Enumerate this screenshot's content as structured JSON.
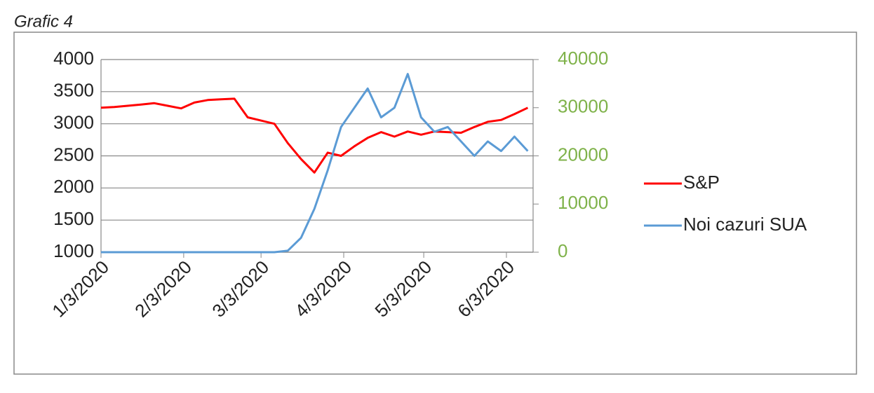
{
  "chart_data": {
    "type": "line",
    "title": "Grafic 4",
    "x": [
      "1/3/2020",
      "1/8/2020",
      "1/13/2020",
      "1/18/2020",
      "1/23/2020",
      "1/28/2020",
      "2/2/2020",
      "2/7/2020",
      "2/12/2020",
      "2/17/2020",
      "2/22/2020",
      "2/27/2020",
      "3/3/2020",
      "3/8/2020",
      "3/13/2020",
      "3/18/2020",
      "3/23/2020",
      "3/28/2020",
      "4/2/2020",
      "4/7/2020",
      "4/12/2020",
      "4/17/2020",
      "4/22/2020",
      "4/27/2020",
      "5/2/2020",
      "5/7/2020",
      "5/12/2020",
      "5/17/2020",
      "5/22/2020",
      "5/27/2020",
      "6/1/2020",
      "6/6/2020",
      "6/11/2020"
    ],
    "series": [
      {
        "name": "S&P",
        "color": "#ff0000",
        "values": [
          3250,
          3260,
          3280,
          3300,
          3320,
          3280,
          3240,
          3330,
          3370,
          3380,
          3390,
          3100,
          3050,
          3000,
          2700,
          2450,
          2240,
          2550,
          2500,
          2650,
          2780,
          2870,
          2800,
          2880,
          2830,
          2880,
          2870,
          2860,
          2950,
          3030,
          3060,
          3150,
          3250
        ]
      },
      {
        "name": "Noi cazuri SUA",
        "color": "#5b9bd5",
        "axis": "y2",
        "values": [
          0,
          0,
          0,
          0,
          0,
          0,
          0,
          0,
          0,
          0,
          0,
          0,
          0,
          0,
          300,
          3000,
          9000,
          17000,
          26000,
          30000,
          34000,
          28000,
          30000,
          37000,
          28000,
          25000,
          26000,
          23000,
          20000,
          23000,
          21000,
          24000,
          21000
        ]
      }
    ],
    "xlim": [
      "1/3/2020",
      "6/13/2020"
    ],
    "xticks": [
      "1/3/2020",
      "2/3/2020",
      "3/3/2020",
      "4/3/2020",
      "5/3/2020",
      "6/3/2020"
    ],
    "ylim": [
      1000,
      4000
    ],
    "yticks": [
      1000,
      1500,
      2000,
      2500,
      3000,
      3500,
      4000
    ],
    "y2lim": [
      0,
      40000
    ],
    "y2ticks": [
      0,
      10000,
      20000,
      30000,
      40000
    ],
    "y2tick_color": "#7fb24a",
    "grid": true,
    "legend": "right"
  }
}
